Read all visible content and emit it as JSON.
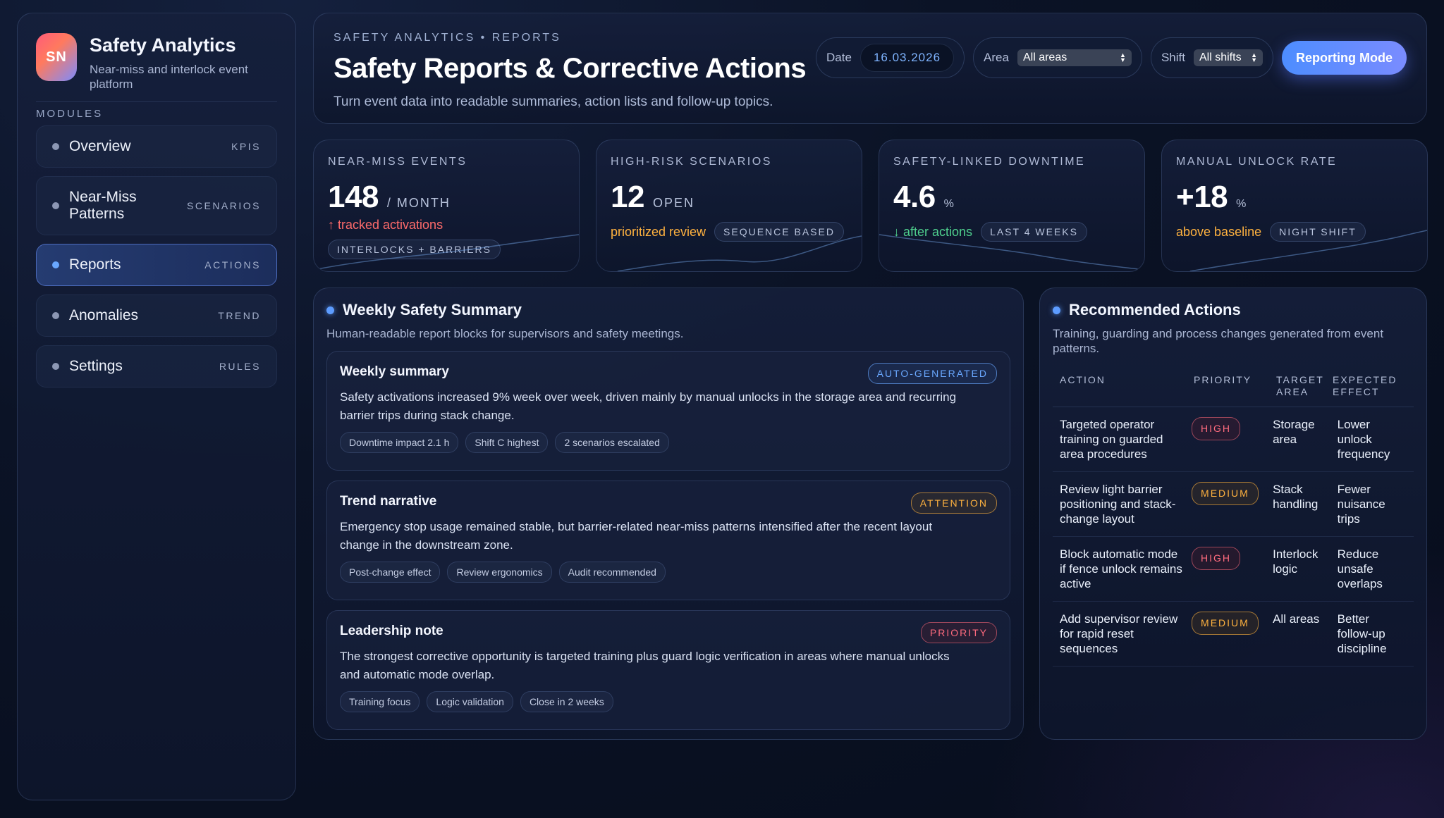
{
  "brand": {
    "logo_text": "SN",
    "title": "Safety Analytics",
    "subtitle": "Near-miss and interlock event platform"
  },
  "sidebar": {
    "section_label": "MODULES",
    "items": [
      {
        "label": "Overview",
        "tag": "KPIS",
        "active": false
      },
      {
        "label": "Near-Miss Patterns",
        "tag": "SCENARIOS",
        "active": false
      },
      {
        "label": "Reports",
        "tag": "ACTIONS",
        "active": true
      },
      {
        "label": "Anomalies",
        "tag": "TREND",
        "active": false
      },
      {
        "label": "Settings",
        "tag": "RULES",
        "active": false
      }
    ]
  },
  "header": {
    "breadcrumb": "SAFETY ANALYTICS • REPORTS",
    "title": "Safety Reports & Corrective Actions",
    "subtitle": "Turn event data into readable summaries, action lists and follow-up topics.",
    "date_label": "Date",
    "date_value": "16.03.2026",
    "area_label": "Area",
    "area_value": "All areas",
    "shift_label": "Shift",
    "shift_value": "All shifts",
    "mode_button": "Reporting Mode"
  },
  "kpis": [
    {
      "label": "NEAR-MISS EVENTS",
      "value": "148",
      "unit": "/ MONTH",
      "trend_text": "↑ tracked activations",
      "tag": "INTERLOCKS + BARRIERS"
    },
    {
      "label": "HIGH-RISK SCENARIOS",
      "value": "12",
      "unit": "OPEN",
      "trend_text": "prioritized review",
      "tag": "SEQUENCE BASED"
    },
    {
      "label": "SAFETY-LINKED DOWNTIME",
      "value": "4.6",
      "unit": "%",
      "trend_text": "↓ after actions",
      "tag": "LAST 4 WEEKS"
    },
    {
      "label": "MANUAL UNLOCK RATE",
      "value": "+18",
      "unit": "%",
      "trend_text": "above baseline",
      "tag": "NIGHT SHIFT"
    }
  ],
  "summary": {
    "title": "Weekly Safety Summary",
    "subtitle": "Human-readable report blocks for supervisors and safety meetings.",
    "blocks": [
      {
        "title": "Weekly summary",
        "badge": "AUTO-GENERATED",
        "text": "Safety activations increased 9% week over week, driven mainly by manual unlocks in the storage area and recurring barrier trips during stack change.",
        "pills": [
          "Downtime impact 2.1 h",
          "Shift C highest",
          "2 scenarios escalated"
        ]
      },
      {
        "title": "Trend narrative",
        "badge": "ATTENTION",
        "text": "Emergency stop usage remained stable, but barrier-related near-miss patterns intensified after the recent layout change in the downstream zone.",
        "pills": [
          "Post-change effect",
          "Review ergonomics",
          "Audit recommended"
        ]
      },
      {
        "title": "Leadership note",
        "badge": "PRIORITY",
        "text": "The strongest corrective opportunity is targeted training plus guard logic verification in areas where manual unlocks and automatic mode overlap.",
        "pills": [
          "Training focus",
          "Logic validation",
          "Close in 2 weeks"
        ]
      }
    ]
  },
  "actions": {
    "title": "Recommended Actions",
    "subtitle": "Training, guarding and process changes generated from event patterns.",
    "columns": [
      "ACTION",
      "PRIORITY",
      "TARGET AREA",
      "EXPECTED EFFECT"
    ],
    "rows": [
      {
        "action": "Targeted operator training on guarded area procedures",
        "priority": "HIGH",
        "area": "Storage area",
        "effect": "Lower unlock frequency"
      },
      {
        "action": "Review light barrier positioning and stack-change layout",
        "priority": "MEDIUM",
        "area": "Stack handling",
        "effect": "Fewer nuisance trips"
      },
      {
        "action": "Block automatic mode if fence unlock remains active",
        "priority": "HIGH",
        "area": "Interlock logic",
        "effect": "Reduce unsafe overlaps"
      },
      {
        "action": "Add supervisor review for rapid reset sequences",
        "priority": "MEDIUM",
        "area": "All areas",
        "effect": "Better follow-up discipline"
      }
    ]
  },
  "colors": {
    "accent": "#5d9cff",
    "high": "#ff6b7e",
    "medium": "#ffb23f",
    "positive": "#4fd08e"
  }
}
